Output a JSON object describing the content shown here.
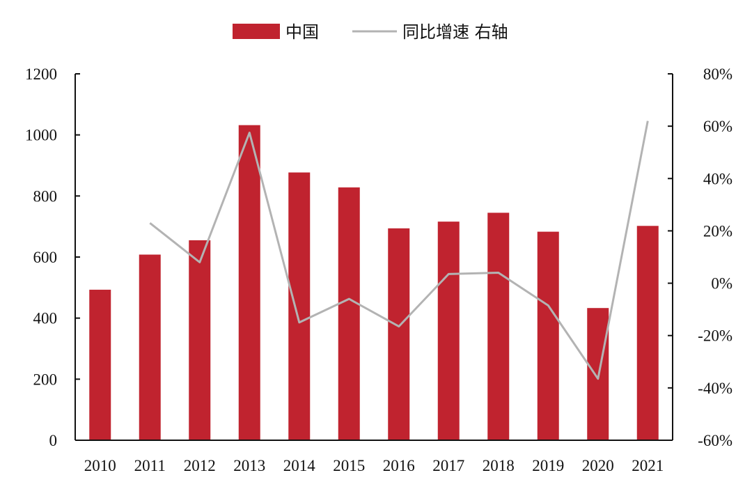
{
  "chart_data": {
    "type": "bar",
    "title": "",
    "xlabel": "",
    "ylabel": "",
    "categories": [
      "2010",
      "2011",
      "2012",
      "2013",
      "2014",
      "2015",
      "2016",
      "2017",
      "2018",
      "2019",
      "2020",
      "2021"
    ],
    "series": [
      {
        "name": "中国",
        "type": "bar",
        "axis": "left",
        "color": "#c0232f",
        "values": [
          493,
          608,
          655,
          1032,
          877,
          828,
          694,
          716,
          745,
          683,
          433,
          702
        ]
      },
      {
        "name": "同比增速 右轴",
        "type": "line",
        "axis": "right",
        "color": "#b3b3b3",
        "values": [
          null,
          23.0,
          8.0,
          57.5,
          -15.0,
          -6.0,
          -16.5,
          3.5,
          4.0,
          -8.5,
          -36.5,
          62.0
        ]
      }
    ],
    "ylim_left": [
      0,
      1200
    ],
    "yticks_left": [
      "0",
      "200",
      "400",
      "600",
      "800",
      "1000",
      "1200"
    ],
    "ylim_right": [
      -60,
      80
    ],
    "yticks_right": [
      "-60%",
      "-40%",
      "-20%",
      "0%",
      "20%",
      "40%",
      "60%",
      "80%"
    ],
    "grid": false,
    "legend_position": "top-center"
  }
}
